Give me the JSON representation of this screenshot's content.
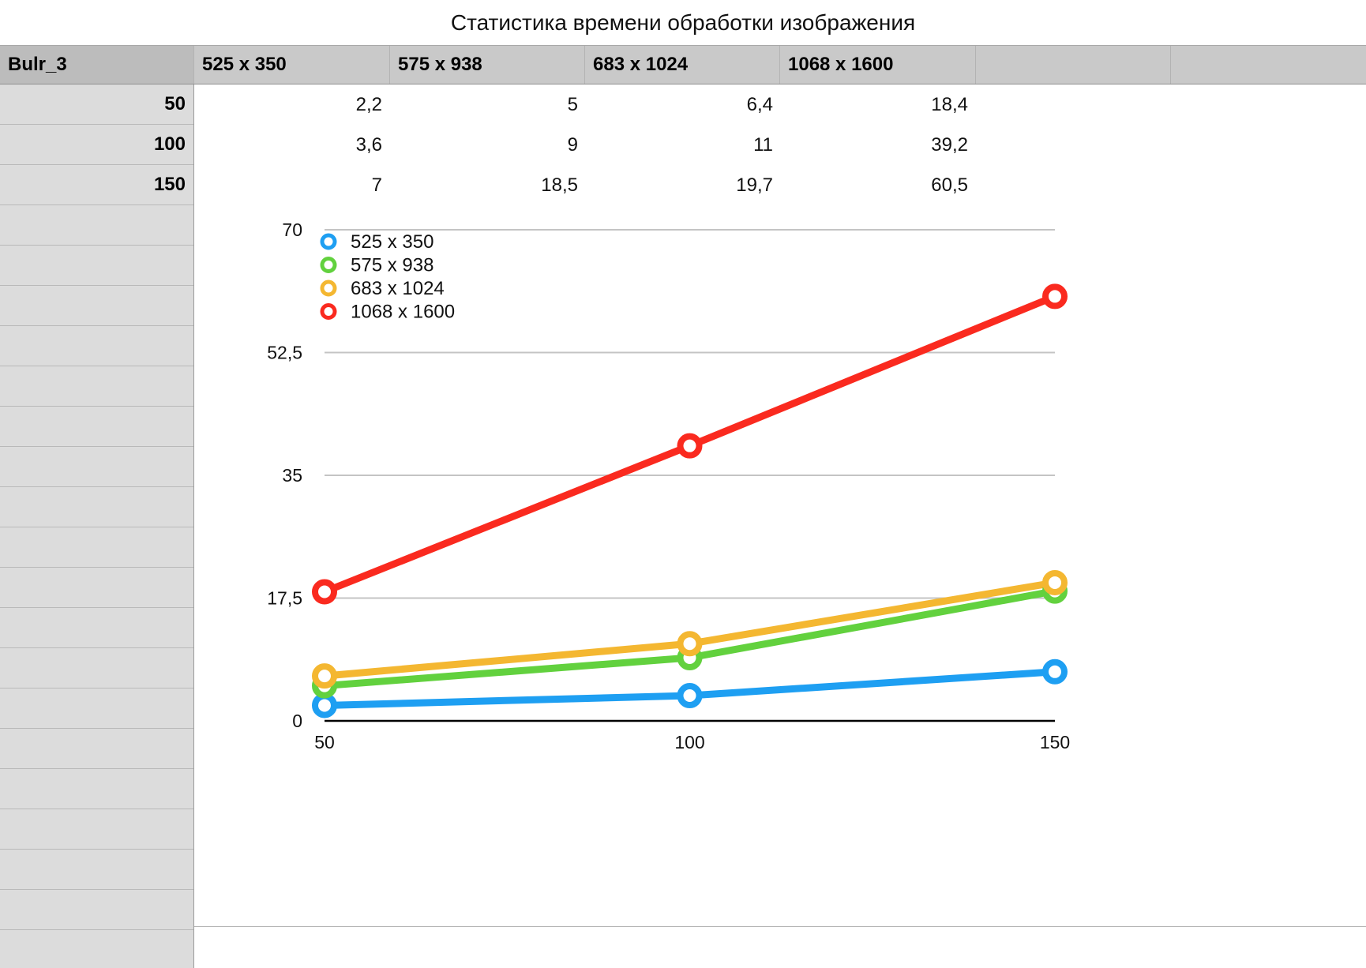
{
  "title": "Статистика времени обработки изображения",
  "table": {
    "corner": "Bulr_3",
    "columns": [
      "525 x 350",
      "575 x 938",
      "683 x 1024",
      "1068 x 1600",
      "",
      ""
    ],
    "rows": [
      {
        "label": "50",
        "values": [
          "2,2",
          "5",
          "6,4",
          "18,4"
        ]
      },
      {
        "label": "100",
        "values": [
          "3,6",
          "9",
          "11",
          "39,2"
        ]
      },
      {
        "label": "150",
        "values": [
          "7",
          "18,5",
          "19,7",
          "60,5"
        ]
      }
    ]
  },
  "chart_data": {
    "type": "line",
    "title": "",
    "xlabel": "",
    "ylabel": "",
    "x": [
      50,
      100,
      150
    ],
    "ylim": [
      0,
      70
    ],
    "yticks": [
      "0",
      "17,5",
      "35",
      "52,5",
      "70"
    ],
    "xticks": [
      "50",
      "100",
      "150"
    ],
    "grid": true,
    "legend_position": "top-left",
    "series": [
      {
        "name": "525 x 350",
        "color": "#1e9ff2",
        "values": [
          2.2,
          3.6,
          7
        ]
      },
      {
        "name": "575 x 938",
        "color": "#62d13e",
        "values": [
          5,
          9,
          18.5
        ]
      },
      {
        "name": "683 x 1024",
        "color": "#f4b731",
        "values": [
          6.4,
          11,
          19.7
        ]
      },
      {
        "name": "1068 x 1600",
        "color": "#fa2a1f",
        "values": [
          18.4,
          39.2,
          60.5
        ]
      }
    ]
  }
}
